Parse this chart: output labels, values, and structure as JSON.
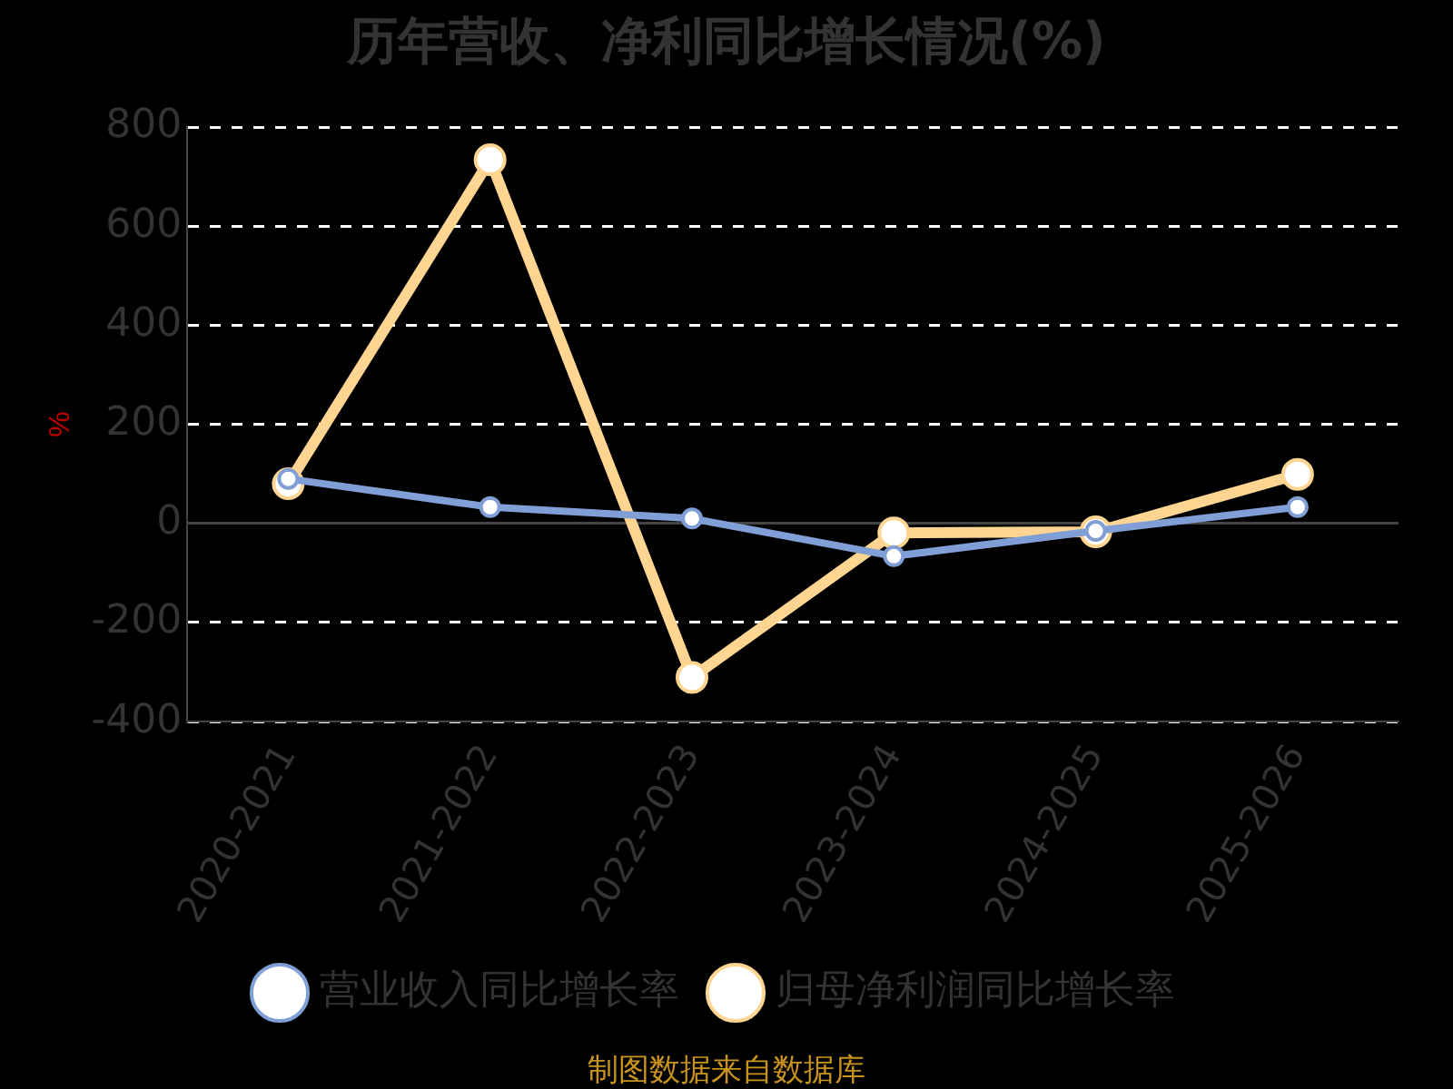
{
  "chart_data": {
    "type": "line",
    "title": "历年营收、净利同比增长情况(%)",
    "ylabel": "%",
    "categories": [
      "2020-2021",
      "2021-2022",
      "2022-2023",
      "2023-2024",
      "2024-2025",
      "2025-2026"
    ],
    "series": [
      {
        "name": "营业收入同比增长率",
        "color": "#7f9fd6",
        "values": [
          90,
          33,
          10,
          -66,
          -15,
          33
        ]
      },
      {
        "name": "归母净利润同比增长率",
        "color": "#ffd591",
        "values": [
          80,
          734,
          -311,
          -19,
          -17,
          99
        ]
      }
    ],
    "ylim": [
      -400,
      800
    ],
    "yticks": [
      -400,
      -200,
      0,
      200,
      400,
      600,
      800
    ],
    "grid": "y",
    "legend": "bottom",
    "marker": "circle",
    "line_style": "solid",
    "annotations": [
      "制图数据来自数据库"
    ]
  }
}
